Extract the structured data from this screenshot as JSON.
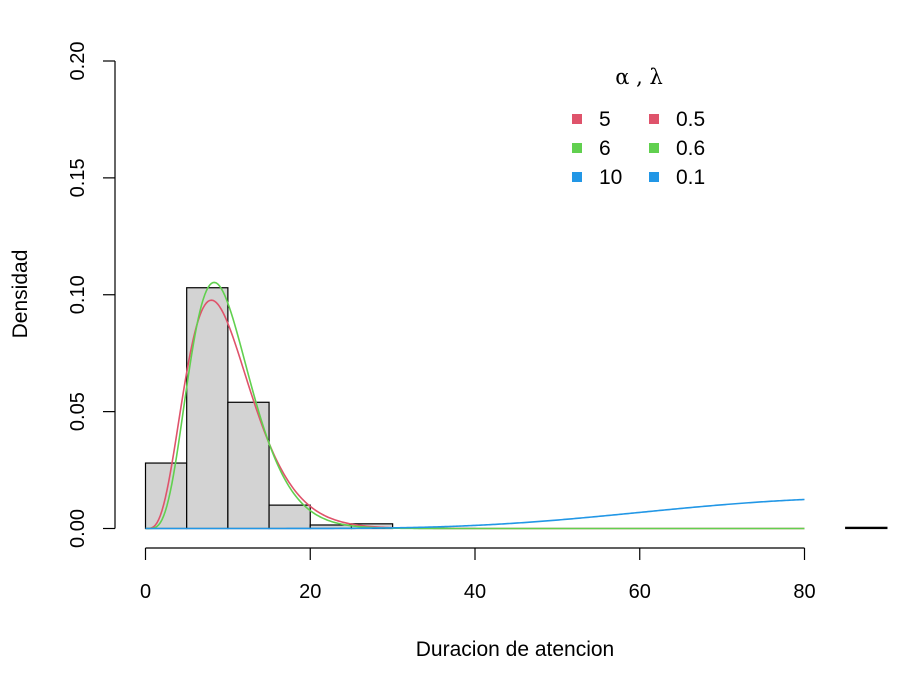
{
  "chart_data": {
    "type": "bar",
    "xlabel": "Duracion de atencion",
    "ylabel": "Densidad",
    "xlim": [
      -5,
      90
    ],
    "ylim": [
      0,
      0.2
    ],
    "xticks": [
      0,
      20,
      40,
      60,
      80
    ],
    "xtick_labels": [
      "0",
      "20",
      "40",
      "60",
      "80"
    ],
    "yticks": [
      0,
      0.05,
      0.1,
      0.15,
      0.2
    ],
    "ytick_labels": [
      "0.00",
      "0.05",
      "0.10",
      "0.15",
      "0.20"
    ],
    "histogram": {
      "bin_edges": [
        0,
        5,
        10,
        15,
        20,
        25,
        30,
        35,
        40,
        45,
        50,
        55,
        60,
        65,
        70,
        75,
        80,
        85,
        90
      ],
      "densities": [
        0.028,
        0.103,
        0.054,
        0.01,
        0.0015,
        0.002,
        0,
        0,
        0,
        0,
        0,
        0,
        0,
        0,
        0,
        0,
        0,
        0.0005
      ],
      "fill_color": "#d3d3d3"
    },
    "series": [
      {
        "alpha": "5",
        "lambda": "0.5",
        "type": "gamma-density",
        "x_range": [
          0,
          80
        ],
        "color": "#DF536B",
        "values_peak": 0.097
      },
      {
        "alpha": "6",
        "lambda": "0.6",
        "type": "gamma-density",
        "x_range": [
          0,
          80
        ],
        "color": "#61D04F",
        "values_peak": 0.105
      },
      {
        "alpha": "10",
        "lambda": "0.1",
        "type": "gamma-density",
        "x_range": [
          0,
          80
        ],
        "color": "#2297E6",
        "values_at_80": 0.0124
      }
    ],
    "legend": {
      "title": "α , λ",
      "placement": "top-right",
      "rows": [
        {
          "alpha": "5",
          "lambda": "0.5",
          "color": "#DF536B"
        },
        {
          "alpha": "6",
          "lambda": "0.6",
          "color": "#61D04F"
        },
        {
          "alpha": "10",
          "lambda": "0.1",
          "color": "#2297E6"
        }
      ]
    },
    "grid": false
  }
}
